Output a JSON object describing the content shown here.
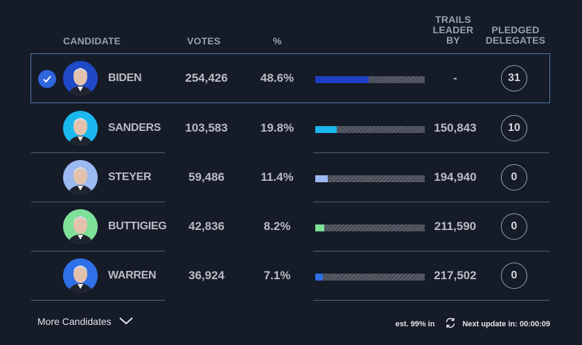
{
  "header": {
    "candidate": "CANDIDATE",
    "votes": "VOTES",
    "pct": "%",
    "trails_leader_by": [
      "TRAILS",
      "LEADER",
      "BY"
    ],
    "pledged_delegates": [
      "PLEDGED",
      "DELEGATES"
    ]
  },
  "candidates": [
    {
      "name": "BIDEN",
      "votes": "254,426",
      "pct": "48.6%",
      "pct_value": 48.6,
      "trails": "-",
      "delegates": "31",
      "bar_color": "#1c3fc4",
      "winner": true,
      "avatar_bg": "#1f49c7"
    },
    {
      "name": "SANDERS",
      "votes": "103,583",
      "pct": "19.8%",
      "pct_value": 19.8,
      "trails": "150,843",
      "delegates": "10",
      "bar_color": "#1ab8ee",
      "winner": false,
      "avatar_bg": "#1ab8ee"
    },
    {
      "name": "STEYER",
      "votes": "59,486",
      "pct": "11.4%",
      "pct_value": 11.4,
      "trails": "194,940",
      "delegates": "0",
      "bar_color": "#9db9f2",
      "winner": false,
      "avatar_bg": "#9db9f2"
    },
    {
      "name": "BUTTIGIEG",
      "votes": "42,836",
      "pct": "8.2%",
      "pct_value": 8.2,
      "trails": "211,590",
      "delegates": "0",
      "bar_color": "#7fe09a",
      "winner": false,
      "avatar_bg": "#7fe09a"
    },
    {
      "name": "WARREN",
      "votes": "36,924",
      "pct": "7.1%",
      "pct_value": 7.1,
      "trails": "217,502",
      "delegates": "0",
      "bar_color": "#2f6fe8",
      "winner": false,
      "avatar_bg": "#2f6fe8"
    }
  ],
  "footer": {
    "more_candidates": "More Candidates",
    "est_in": "est. 99% in",
    "next_update": "Next update in: 00:00:09"
  }
}
